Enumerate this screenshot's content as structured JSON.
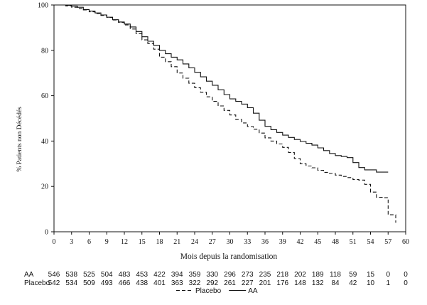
{
  "chart_data": {
    "type": "line",
    "ylabel": "% Patients non Décédés",
    "xlabel": "Mois depuis la randomisation",
    "xlim": [
      0,
      60
    ],
    "ylim": [
      0,
      100
    ],
    "x_ticks": [
      0,
      3,
      6,
      9,
      12,
      15,
      18,
      21,
      24,
      27,
      30,
      33,
      36,
      39,
      42,
      45,
      48,
      51,
      54,
      57,
      60
    ],
    "y_ticks": [
      0,
      20,
      40,
      60,
      80,
      100
    ],
    "grid": false,
    "legend_position": "bottom-center",
    "series": [
      {
        "name": "AA",
        "line_style": "solid",
        "color": "#111111",
        "points": [
          [
            0,
            100
          ],
          [
            1,
            100
          ],
          [
            2,
            99.8
          ],
          [
            3,
            99.5
          ],
          [
            4,
            99
          ],
          [
            5,
            98
          ],
          [
            6,
            97.3
          ],
          [
            7,
            96.5
          ],
          [
            8,
            95.6
          ],
          [
            9,
            94.6
          ],
          [
            10,
            93.5
          ],
          [
            11,
            92.5
          ],
          [
            12,
            91.6
          ],
          [
            13,
            90.3
          ],
          [
            14,
            88.3
          ],
          [
            15,
            86
          ],
          [
            16,
            84
          ],
          [
            17,
            82.2
          ],
          [
            18,
            80
          ],
          [
            19,
            78.5
          ],
          [
            20,
            77
          ],
          [
            21,
            75.8
          ],
          [
            22,
            74
          ],
          [
            23,
            72.3
          ],
          [
            24,
            70.3
          ],
          [
            25,
            68.3
          ],
          [
            26,
            66.4
          ],
          [
            27,
            64.6
          ],
          [
            28,
            62.6
          ],
          [
            29,
            60.5
          ],
          [
            30,
            58.6
          ],
          [
            31,
            57.5
          ],
          [
            32,
            56.3
          ],
          [
            33,
            54.7
          ],
          [
            34,
            52.3
          ],
          [
            35,
            49.2
          ],
          [
            36,
            46.5
          ],
          [
            37,
            45
          ],
          [
            38,
            43.8
          ],
          [
            39,
            42.6
          ],
          [
            40,
            41.6
          ],
          [
            41,
            40.7
          ],
          [
            42,
            39.8
          ],
          [
            43,
            39
          ],
          [
            44,
            38.2
          ],
          [
            45,
            37
          ],
          [
            46,
            35.8
          ],
          [
            47,
            34.5
          ],
          [
            48,
            33.6
          ],
          [
            49,
            33.2
          ],
          [
            50,
            32.7
          ],
          [
            51,
            30.5
          ],
          [
            52,
            28.3
          ],
          [
            53,
            27.3
          ],
          [
            54,
            27.3
          ],
          [
            55,
            26.3
          ],
          [
            56,
            26.3
          ],
          [
            57,
            26.3
          ]
        ]
      },
      {
        "name": "Placebo",
        "line_style": "dashed",
        "color": "#111111",
        "points": [
          [
            0,
            100
          ],
          [
            1,
            100
          ],
          [
            2,
            99.6
          ],
          [
            3,
            99
          ],
          [
            4,
            98.4
          ],
          [
            5,
            97.8
          ],
          [
            6,
            97
          ],
          [
            7,
            96.2
          ],
          [
            8,
            95.4
          ],
          [
            9,
            94.5
          ],
          [
            10,
            93.4
          ],
          [
            11,
            92.3
          ],
          [
            12,
            91.2
          ],
          [
            13,
            89.4
          ],
          [
            14,
            87.3
          ],
          [
            15,
            84.6
          ],
          [
            16,
            83
          ],
          [
            17,
            80.5
          ],
          [
            18,
            77
          ],
          [
            19,
            75
          ],
          [
            20,
            72.8
          ],
          [
            21,
            70
          ],
          [
            22,
            67.7
          ],
          [
            23,
            65.5
          ],
          [
            24,
            63.5
          ],
          [
            25,
            61.5
          ],
          [
            26,
            59.5
          ],
          [
            27,
            57.5
          ],
          [
            28,
            55.5
          ],
          [
            29,
            53.5
          ],
          [
            30,
            51.5
          ],
          [
            31,
            49.5
          ],
          [
            32,
            48
          ],
          [
            33,
            46.4
          ],
          [
            34,
            45.2
          ],
          [
            35,
            43.5
          ],
          [
            36,
            41.4
          ],
          [
            37,
            40
          ],
          [
            38,
            38.7
          ],
          [
            39,
            37.2
          ],
          [
            40,
            35
          ],
          [
            41,
            32.3
          ],
          [
            42,
            30
          ],
          [
            43,
            29
          ],
          [
            44,
            28.2
          ],
          [
            45,
            27.1
          ],
          [
            46,
            26.2
          ],
          [
            47,
            25.7
          ],
          [
            48,
            25
          ],
          [
            49,
            24.4
          ],
          [
            50,
            23.9
          ],
          [
            51,
            23
          ],
          [
            52,
            22.8
          ],
          [
            53,
            20.9
          ],
          [
            54,
            17.5
          ],
          [
            55,
            15.2
          ],
          [
            56,
            15
          ],
          [
            57,
            7.5
          ],
          [
            58,
            7.5
          ],
          [
            58.3,
            4
          ]
        ]
      }
    ],
    "risk_table": {
      "time_points": [
        0,
        3,
        6,
        9,
        12,
        15,
        18,
        21,
        24,
        27,
        30,
        33,
        36,
        39,
        42,
        45,
        48,
        51,
        54,
        57,
        60
      ],
      "rows": [
        {
          "label": "AA",
          "values": [
            "546",
            "538",
            "525",
            "504",
            "483",
            "453",
            "422",
            "394",
            "359",
            "330",
            "296",
            "273",
            "235",
            "218",
            "202",
            "189",
            "118",
            "59",
            "15",
            "0",
            "0"
          ]
        },
        {
          "label": "Placebo",
          "values": [
            "542",
            "534",
            "509",
            "493",
            "466",
            "438",
            "401",
            "363",
            "322",
            "292",
            "261",
            "227",
            "201",
            "176",
            "148",
            "132",
            "84",
            "42",
            "10",
            "1",
            "0"
          ]
        }
      ]
    },
    "legend": [
      {
        "label": "Placebo",
        "line_style": "dashed"
      },
      {
        "label": "AA",
        "line_style": "solid"
      }
    ]
  }
}
